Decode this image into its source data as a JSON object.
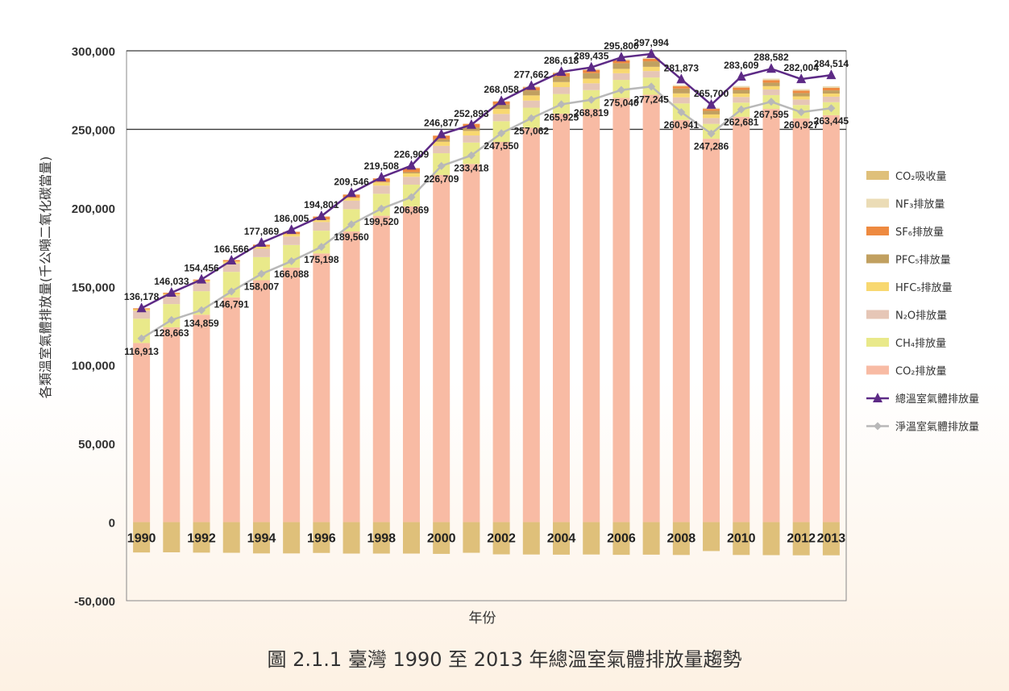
{
  "caption": "圖 2.1.1 臺灣 1990 至 2013 年總溫室氣體排放量趨勢",
  "chart_data": {
    "type": "bar",
    "title": "",
    "xlabel": "年份",
    "ylabel": "各類溫室氣體排放量(千公噸二氧化碳當量)",
    "ylim": [
      -50000,
      300000
    ],
    "yticks": [
      -50000,
      0,
      50000,
      100000,
      150000,
      200000,
      250000,
      300000
    ],
    "ytick_labels": [
      "-50,000",
      "0",
      "50,000",
      "100,000",
      "150,000",
      "200,000",
      "250,000",
      "300,000"
    ],
    "grid": "horizontal at 250,000 and 300,000",
    "legend_position": "right",
    "categories": [
      "1990",
      "1991",
      "1992",
      "1993",
      "1994",
      "1995",
      "1996",
      "1997",
      "1998",
      "1999",
      "2000",
      "2001",
      "2002",
      "2003",
      "2004",
      "2005",
      "2006",
      "2007",
      "2008",
      "2009",
      "2010",
      "2011",
      "2012",
      "2013"
    ],
    "xtick_labels": [
      "1990",
      "",
      "1992",
      "",
      "1994",
      "",
      "1996",
      "",
      "1998",
      "",
      "2000",
      "",
      "2002",
      "",
      "2004",
      "",
      "2006",
      "",
      "2008",
      "",
      "2010",
      "",
      "2012",
      "2013"
    ],
    "colors": {
      "CO2_emission": "#f8bba4",
      "CH4": "#e9e98a",
      "N2O": "#e6c6b6",
      "HFCs": "#f8d870",
      "PFCs": "#c1a060",
      "SF6": "#ee8a40",
      "NF3": "#ebdcb6",
      "CO2_sink": "#dfc07a",
      "total_line": "#5d2a86",
      "net_line": "#b8b8b8",
      "grid": "#3a3a3a",
      "axis": "#888888"
    },
    "series": [
      {
        "key": "CO2_emission",
        "name": "CO₂排放量",
        "values": [
          114000,
          124000,
          132000,
          143000,
          154000,
          162000,
          171000,
          185000,
          195000,
          201000,
          221000,
          228000,
          242000,
          251000,
          260000,
          263000,
          270000,
          272000,
          256000,
          244000,
          258000,
          263000,
          257000,
          259000
        ]
      },
      {
        "key": "CH4",
        "name": "CH₄排放量",
        "values": [
          15500,
          14800,
          15000,
          16300,
          14700,
          14400,
          14500,
          14200,
          14000,
          13800,
          13800,
          13600,
          13200,
          12800,
          12500,
          12000,
          11500,
          11000,
          10500,
          9500,
          9000,
          8800,
          8500,
          8300
        ]
      },
      {
        "key": "N2O",
        "name": "N₂O排放量",
        "values": [
          5000,
          5400,
          5600,
          5300,
          5300,
          5400,
          5500,
          5400,
          5200,
          5000,
          4700,
          4500,
          4600,
          4500,
          4400,
          4300,
          4200,
          4100,
          3900,
          3700,
          3600,
          3600,
          3500,
          3500
        ]
      },
      {
        "key": "HFCs",
        "name": "HFC₅排放量",
        "values": [
          1000,
          1100,
          1200,
          1300,
          1400,
          1500,
          1600,
          1800,
          2000,
          2200,
          2600,
          2900,
          3200,
          3300,
          3200,
          3000,
          2800,
          2700,
          2500,
          2300,
          2200,
          2100,
          2000,
          2000
        ]
      },
      {
        "key": "PFCs",
        "name": "PFC₅排放量",
        "values": [
          0,
          0,
          0,
          0,
          0,
          0,
          0,
          0,
          300,
          800,
          1500,
          2200,
          2800,
          3200,
          3500,
          3500,
          3600,
          3500,
          3100,
          2300,
          2300,
          2200,
          2100,
          2000
        ]
      },
      {
        "key": "SF6",
        "name": "SF₆排放量",
        "values": [
          600,
          700,
          600,
          900,
          1200,
          1500,
          1900,
          2100,
          2300,
          2500,
          2400,
          2300,
          1900,
          2000,
          2200,
          2000,
          1800,
          1600,
          1400,
          1200,
          1500,
          1600,
          1500,
          1600
        ]
      },
      {
        "key": "NF3",
        "name": "NF₃排放量",
        "values": [
          0,
          0,
          0,
          0,
          0,
          0,
          0,
          0,
          0,
          0,
          0,
          0,
          300,
          500,
          600,
          700,
          800,
          800,
          800,
          700,
          1000,
          1000,
          1000,
          1100
        ]
      },
      {
        "key": "CO2_sink",
        "name": "CO₂吸收量",
        "values": [
          -19300,
          -19200,
          -19400,
          -19500,
          -19900,
          -19900,
          -19600,
          -20000,
          -20000,
          -20000,
          -20200,
          -19500,
          -20500,
          -20600,
          -20700,
          -20600,
          -20800,
          -20700,
          -20900,
          -18400,
          -20900,
          -21000,
          -21100,
          -21100
        ]
      }
    ],
    "lines": [
      {
        "key": "total",
        "name": "總溫室氣體排放量",
        "values": [
          136178,
          146033,
          154456,
          166566,
          177869,
          186005,
          194801,
          209546,
          219508,
          226909,
          246877,
          252893,
          268058,
          277662,
          286618,
          289435,
          295800,
          297994,
          281873,
          265700,
          283609,
          288582,
          282004,
          284514
        ],
        "labels": [
          "136,178",
          "146,033",
          "154,456",
          "166,566",
          "177,869",
          "186,005",
          "194,801",
          "209,546",
          "219,508",
          "226,909",
          "246,877",
          "252,893",
          "268,058",
          "277,662",
          "286,618",
          "289,435",
          "295,800",
          "297,994",
          "281,873",
          "265,700",
          "283,609",
          "288,582",
          "282,004",
          "284,514"
        ]
      },
      {
        "key": "net",
        "name": "淨溫室氣體排放量",
        "values": [
          116913,
          128663,
          134859,
          146791,
          158007,
          166088,
          175198,
          189560,
          199520,
          206869,
          226709,
          233418,
          247550,
          257062,
          265925,
          268819,
          275040,
          277245,
          260941,
          247286,
          262681,
          267595,
          260927,
          263445
        ],
        "labels": [
          "116,913",
          "128,663",
          "134,859",
          "146,791",
          "158,007",
          "166,088",
          "175,198",
          "189,560",
          "199,520",
          "206,869",
          "226,709",
          "233,418",
          "247,550",
          "257,062",
          "265,925",
          "268,819",
          "275,040",
          "277,245",
          "260,941",
          "247,286",
          "262,681",
          "267,595",
          "260,927",
          "263,445"
        ]
      }
    ],
    "legend": [
      {
        "key": "CO2_sink",
        "label": "CO₂吸收量"
      },
      {
        "key": "NF3",
        "label": "NF₃排放量"
      },
      {
        "key": "SF6",
        "label": "SF₆排放量"
      },
      {
        "key": "PFCs",
        "label": "PFC₅排放量"
      },
      {
        "key": "HFCs",
        "label": "HFC₅排放量"
      },
      {
        "key": "N2O",
        "label": "N₂O排放量"
      },
      {
        "key": "CH4",
        "label": "CH₄排放量"
      },
      {
        "key": "CO2_emission",
        "label": "CO₂排放量"
      },
      {
        "key": "total",
        "label": "總溫室氣體排放量",
        "line": true
      },
      {
        "key": "net",
        "label": "淨溫室氣體排放量",
        "line": true
      }
    ]
  }
}
